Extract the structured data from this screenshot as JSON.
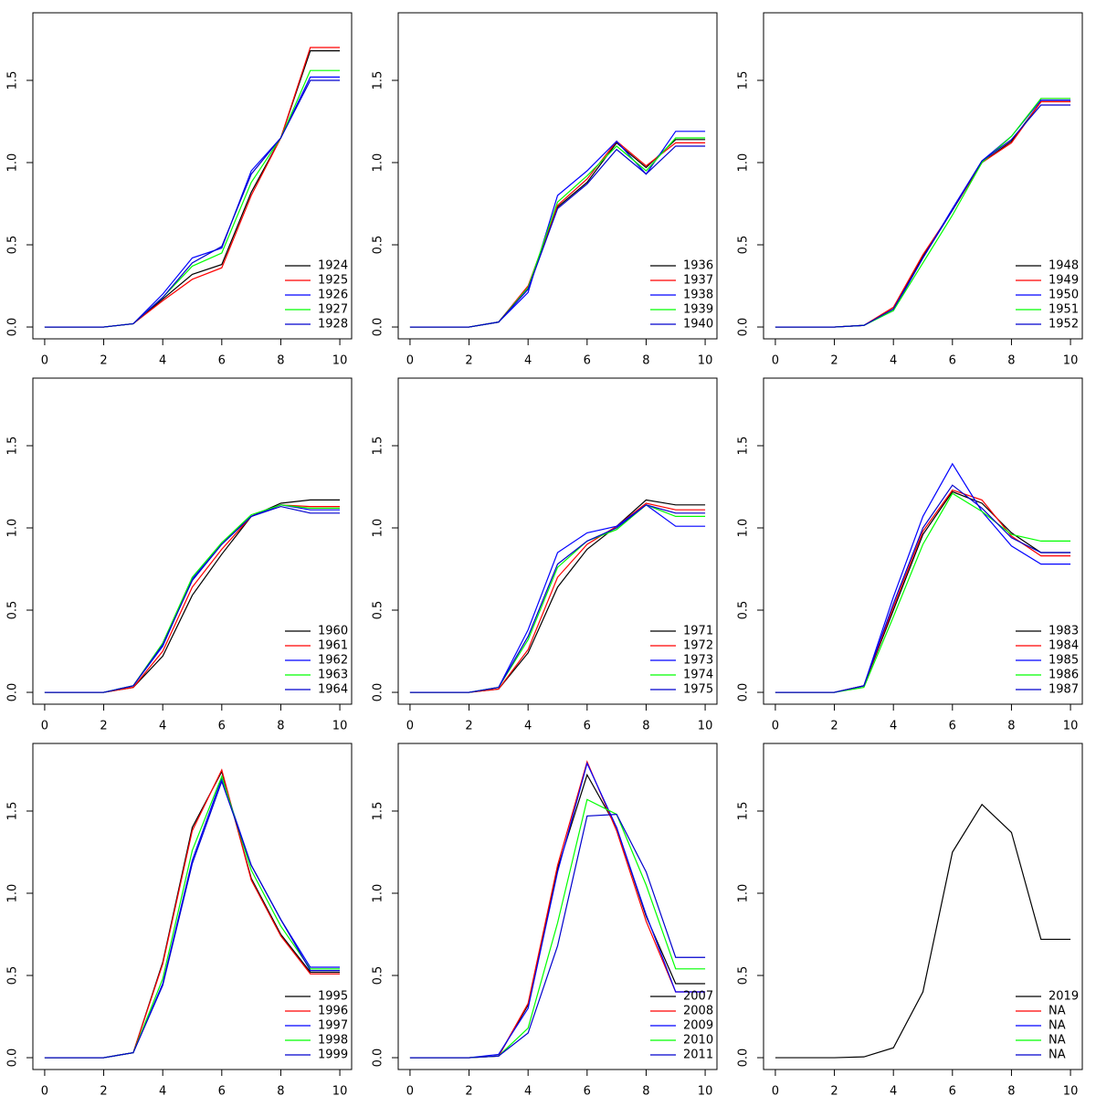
{
  "chart_data": [
    {
      "type": "line",
      "x": [
        0,
        1,
        2,
        3,
        4,
        5,
        6,
        7,
        8,
        9,
        10
      ],
      "xlim": [
        -0.4,
        10.4
      ],
      "ylim": [
        -0.072,
        1.911
      ],
      "xticks": [
        0,
        2,
        4,
        6,
        8,
        10
      ],
      "yticks": [
        {
          "value": 0,
          "label": "0.0"
        },
        0.5,
        {
          "value": 1,
          "label": "1.0"
        },
        1.5
      ],
      "legend": "bottomright",
      "series": [
        {
          "name": "1924",
          "color": "#000000",
          "values": [
            0,
            0,
            0,
            0.02,
            0.17,
            0.32,
            0.38,
            0.82,
            1.15,
            1.68,
            1.68
          ]
        },
        {
          "name": "1925",
          "color": "#ff0000",
          "values": [
            0,
            0,
            0,
            0.02,
            0.16,
            0.29,
            0.36,
            0.8,
            1.15,
            1.7,
            1.7
          ]
        },
        {
          "name": "1926",
          "color": "#0000ff",
          "values": [
            0,
            0,
            0,
            0.02,
            0.2,
            0.42,
            0.48,
            0.95,
            1.15,
            1.52,
            1.52
          ]
        },
        {
          "name": "1927",
          "color": "#00ff00",
          "values": [
            0,
            0,
            0,
            0.02,
            0.18,
            0.37,
            0.45,
            0.88,
            1.15,
            1.56,
            1.56
          ]
        },
        {
          "name": "1928",
          "color": "#0000cd",
          "values": [
            0,
            0,
            0,
            0.02,
            0.18,
            0.39,
            0.49,
            0.93,
            1.15,
            1.5,
            1.5
          ]
        }
      ]
    },
    {
      "type": "line",
      "x": [
        0,
        1,
        2,
        3,
        4,
        5,
        6,
        7,
        8,
        9,
        10
      ],
      "xlim": [
        -0.4,
        10.4
      ],
      "ylim": [
        -0.072,
        1.911
      ],
      "xticks": [
        0,
        2,
        4,
        6,
        8,
        10
      ],
      "yticks": [
        {
          "value": 0,
          "label": "0.0"
        },
        0.5,
        {
          "value": 1,
          "label": "1.0"
        },
        1.5
      ],
      "legend": "bottomright",
      "series": [
        {
          "name": "1936",
          "color": "#000000",
          "values": [
            0,
            0,
            0,
            0.03,
            0.24,
            0.73,
            0.88,
            1.12,
            0.97,
            1.14,
            1.14
          ]
        },
        {
          "name": "1937",
          "color": "#ff0000",
          "values": [
            0,
            0,
            0,
            0.03,
            0.25,
            0.74,
            0.9,
            1.13,
            0.98,
            1.12,
            1.12
          ]
        },
        {
          "name": "1938",
          "color": "#0000ff",
          "values": [
            0,
            0,
            0,
            0.03,
            0.21,
            0.8,
            0.95,
            1.13,
            0.93,
            1.19,
            1.19
          ]
        },
        {
          "name": "1939",
          "color": "#00ff00",
          "values": [
            0,
            0,
            0,
            0.03,
            0.24,
            0.76,
            0.92,
            1.1,
            0.95,
            1.15,
            1.15
          ]
        },
        {
          "name": "1940",
          "color": "#0000cd",
          "values": [
            0,
            0,
            0,
            0.03,
            0.23,
            0.72,
            0.87,
            1.08,
            0.93,
            1.1,
            1.1
          ]
        }
      ]
    },
    {
      "type": "line",
      "x": [
        0,
        1,
        2,
        3,
        4,
        5,
        6,
        7,
        8,
        9,
        10
      ],
      "xlim": [
        -0.4,
        10.4
      ],
      "ylim": [
        -0.072,
        1.911
      ],
      "xticks": [
        0,
        2,
        4,
        6,
        8,
        10
      ],
      "yticks": [
        {
          "value": 0,
          "label": "0.0"
        },
        0.5,
        {
          "value": 1,
          "label": "1.0"
        },
        1.5
      ],
      "legend": "bottomright",
      "series": [
        {
          "name": "1948",
          "color": "#000000",
          "values": [
            0,
            0,
            0,
            0.01,
            0.11,
            0.43,
            0.71,
            1.0,
            1.13,
            1.37,
            1.37
          ]
        },
        {
          "name": "1949",
          "color": "#ff0000",
          "values": [
            0,
            0,
            0,
            0.01,
            0.12,
            0.44,
            0.71,
            1.0,
            1.12,
            1.37,
            1.37
          ]
        },
        {
          "name": "1950",
          "color": "#0000ff",
          "values": [
            0,
            0,
            0,
            0.01,
            0.1,
            0.42,
            0.72,
            1.01,
            1.16,
            1.38,
            1.38
          ]
        },
        {
          "name": "1951",
          "color": "#00ff00",
          "values": [
            0,
            0,
            0,
            0.01,
            0.1,
            0.39,
            0.68,
            1.0,
            1.16,
            1.39,
            1.39
          ]
        },
        {
          "name": "1952",
          "color": "#0000cd",
          "values": [
            0,
            0,
            0,
            0.01,
            0.11,
            0.42,
            0.71,
            1.01,
            1.14,
            1.35,
            1.35
          ]
        }
      ]
    },
    {
      "type": "line",
      "x": [
        0,
        1,
        2,
        3,
        4,
        5,
        6,
        7,
        8,
        9,
        10
      ],
      "xlim": [
        -0.4,
        10.4
      ],
      "ylim": [
        -0.072,
        1.911
      ],
      "xticks": [
        0,
        2,
        4,
        6,
        8,
        10
      ],
      "yticks": [
        {
          "value": 0,
          "label": "0.0"
        },
        0.5,
        {
          "value": 1,
          "label": "1.0"
        },
        1.5
      ],
      "legend": "bottomright",
      "series": [
        {
          "name": "1960",
          "color": "#000000",
          "values": [
            0,
            0,
            0,
            0.03,
            0.22,
            0.59,
            0.84,
            1.07,
            1.15,
            1.17,
            1.17
          ]
        },
        {
          "name": "1961",
          "color": "#ff0000",
          "values": [
            0,
            0,
            0,
            0.03,
            0.25,
            0.64,
            0.87,
            1.07,
            1.14,
            1.13,
            1.13
          ]
        },
        {
          "name": "1962",
          "color": "#0000ff",
          "values": [
            0,
            0,
            0,
            0.04,
            0.28,
            0.69,
            0.91,
            1.07,
            1.14,
            1.11,
            1.11
          ]
        },
        {
          "name": "1963",
          "color": "#00ff00",
          "values": [
            0,
            0,
            0,
            0.04,
            0.3,
            0.7,
            0.91,
            1.08,
            1.14,
            1.12,
            1.12
          ]
        },
        {
          "name": "1964",
          "color": "#0000cd",
          "values": [
            0,
            0,
            0,
            0.04,
            0.29,
            0.68,
            0.9,
            1.07,
            1.13,
            1.09,
            1.09
          ]
        }
      ]
    },
    {
      "type": "line",
      "x": [
        0,
        1,
        2,
        3,
        4,
        5,
        6,
        7,
        8,
        9,
        10
      ],
      "xlim": [
        -0.4,
        10.4
      ],
      "ylim": [
        -0.072,
        1.911
      ],
      "xticks": [
        0,
        2,
        4,
        6,
        8,
        10
      ],
      "yticks": [
        {
          "value": 0,
          "label": "0.0"
        },
        0.5,
        {
          "value": 1,
          "label": "1.0"
        },
        1.5
      ],
      "legend": "bottomright",
      "series": [
        {
          "name": "1971",
          "color": "#000000",
          "values": [
            0,
            0,
            0,
            0.02,
            0.24,
            0.64,
            0.87,
            1.01,
            1.17,
            1.14,
            1.14
          ]
        },
        {
          "name": "1972",
          "color": "#ff0000",
          "values": [
            0,
            0,
            0,
            0.02,
            0.26,
            0.7,
            0.9,
            1.01,
            1.15,
            1.11,
            1.11
          ]
        },
        {
          "name": "1973",
          "color": "#0000ff",
          "values": [
            0,
            0,
            0,
            0.03,
            0.38,
            0.85,
            0.97,
            1.01,
            1.14,
            1.01,
            1.01
          ]
        },
        {
          "name": "1974",
          "color": "#00ff00",
          "values": [
            0,
            0,
            0,
            0.03,
            0.32,
            0.76,
            0.92,
            0.99,
            1.14,
            1.07,
            1.07
          ]
        },
        {
          "name": "1975",
          "color": "#0000cd",
          "values": [
            0,
            0,
            0,
            0.03,
            0.34,
            0.78,
            0.92,
            1.0,
            1.14,
            1.09,
            1.09
          ]
        }
      ]
    },
    {
      "type": "line",
      "x": [
        0,
        1,
        2,
        3,
        4,
        5,
        6,
        7,
        8,
        9,
        10
      ],
      "xlim": [
        -0.4,
        10.4
      ],
      "ylim": [
        -0.072,
        1.911
      ],
      "xticks": [
        0,
        2,
        4,
        6,
        8,
        10
      ],
      "yticks": [
        {
          "value": 0,
          "label": "0.0"
        },
        0.5,
        {
          "value": 1,
          "label": "1.0"
        },
        1.5
      ],
      "legend": "bottomright",
      "series": [
        {
          "name": "1983",
          "color": "#000000",
          "values": [
            0,
            0,
            0,
            0.04,
            0.5,
            0.96,
            1.22,
            1.15,
            0.97,
            0.85,
            0.85
          ]
        },
        {
          "name": "1984",
          "color": "#ff0000",
          "values": [
            0,
            0,
            0,
            0.04,
            0.52,
            0.98,
            1.23,
            1.17,
            0.95,
            0.83,
            0.83
          ]
        },
        {
          "name": "1985",
          "color": "#0000ff",
          "values": [
            0,
            0,
            0,
            0.04,
            0.58,
            1.07,
            1.39,
            1.1,
            0.89,
            0.78,
            0.78
          ]
        },
        {
          "name": "1986",
          "color": "#00ff00",
          "values": [
            0,
            0,
            0,
            0.03,
            0.46,
            0.9,
            1.21,
            1.1,
            0.96,
            0.92,
            0.92
          ]
        },
        {
          "name": "1987",
          "color": "#0000cd",
          "values": [
            0,
            0,
            0,
            0.04,
            0.54,
            1.0,
            1.26,
            1.12,
            0.94,
            0.85,
            0.85
          ]
        }
      ]
    },
    {
      "type": "line",
      "x": [
        0,
        1,
        2,
        3,
        4,
        5,
        6,
        7,
        8,
        9,
        10
      ],
      "xlim": [
        -0.4,
        10.4
      ],
      "ylim": [
        -0.072,
        1.911
      ],
      "xticks": [
        0,
        2,
        4,
        6,
        8,
        10
      ],
      "yticks": [
        {
          "value": 0,
          "label": "0.0"
        },
        0.5,
        {
          "value": 1,
          "label": "1.0"
        },
        1.5
      ],
      "legend": "bottomright",
      "series": [
        {
          "name": "1995",
          "color": "#000000",
          "values": [
            0,
            0,
            0,
            0.03,
            0.58,
            1.4,
            1.74,
            1.09,
            0.75,
            0.52,
            0.52
          ]
        },
        {
          "name": "1996",
          "color": "#ff0000",
          "values": [
            0,
            0,
            0,
            0.03,
            0.57,
            1.38,
            1.75,
            1.08,
            0.74,
            0.51,
            0.51
          ]
        },
        {
          "name": "1997",
          "color": "#0000ff",
          "values": [
            0,
            0,
            0,
            0.03,
            0.45,
            1.2,
            1.7,
            1.17,
            0.84,
            0.55,
            0.55
          ]
        },
        {
          "name": "1998",
          "color": "#00ff00",
          "values": [
            0,
            0,
            0,
            0.03,
            0.48,
            1.26,
            1.71,
            1.14,
            0.8,
            0.54,
            0.54
          ]
        },
        {
          "name": "1999",
          "color": "#0000cd",
          "values": [
            0,
            0,
            0,
            0.03,
            0.44,
            1.18,
            1.68,
            1.17,
            0.84,
            0.53,
            0.53
          ]
        }
      ]
    },
    {
      "type": "line",
      "x": [
        0,
        1,
        2,
        3,
        4,
        5,
        6,
        7,
        8,
        9,
        10
      ],
      "xlim": [
        -0.4,
        10.4
      ],
      "ylim": [
        -0.072,
        1.911
      ],
      "xticks": [
        0,
        2,
        4,
        6,
        8,
        10
      ],
      "yticks": [
        {
          "value": 0,
          "label": "0.0"
        },
        0.5,
        {
          "value": 1,
          "label": "1.0"
        },
        1.5
      ],
      "legend": "bottomright",
      "series": [
        {
          "name": "2007",
          "color": "#000000",
          "values": [
            0,
            0,
            0,
            0.01,
            0.32,
            1.15,
            1.72,
            1.4,
            0.86,
            0.45,
            0.45
          ]
        },
        {
          "name": "2008",
          "color": "#ff0000",
          "values": [
            0,
            0,
            0,
            0.01,
            0.33,
            1.17,
            1.8,
            1.38,
            0.83,
            0.4,
            0.4
          ]
        },
        {
          "name": "2009",
          "color": "#0000ff",
          "values": [
            0,
            0,
            0,
            0.02,
            0.3,
            1.13,
            1.79,
            1.4,
            0.87,
            0.4,
            0.4
          ]
        },
        {
          "name": "2010",
          "color": "#00ff00",
          "values": [
            0,
            0,
            0,
            0.01,
            0.18,
            0.82,
            1.57,
            1.48,
            1.05,
            0.54,
            0.54
          ]
        },
        {
          "name": "2011",
          "color": "#0000cd",
          "values": [
            0,
            0,
            0,
            0.01,
            0.15,
            0.68,
            1.47,
            1.48,
            1.13,
            0.61,
            0.61
          ]
        }
      ]
    },
    {
      "type": "line",
      "x": [
        0,
        1,
        2,
        3,
        4,
        5,
        6,
        7,
        8,
        9,
        10
      ],
      "xlim": [
        -0.4,
        10.4
      ],
      "ylim": [
        -0.072,
        1.911
      ],
      "xticks": [
        0,
        2,
        4,
        6,
        8,
        10
      ],
      "yticks": [
        {
          "value": 0,
          "label": "0.0"
        },
        0.5,
        {
          "value": 1,
          "label": "1.0"
        },
        1.5
      ],
      "legend": "bottomright",
      "series": [
        {
          "name": "2019",
          "color": "#000000",
          "values": [
            0,
            0,
            0,
            0.005,
            0.06,
            0.4,
            1.25,
            1.54,
            1.37,
            0.72,
            0.72
          ]
        },
        {
          "name": "NA",
          "color": "#ff0000",
          "values": [
            null,
            null,
            null,
            null,
            null,
            null,
            null,
            null,
            null,
            null,
            null
          ]
        },
        {
          "name": "NA",
          "color": "#0000ff",
          "values": [
            null,
            null,
            null,
            null,
            null,
            null,
            null,
            null,
            null,
            null,
            null
          ]
        },
        {
          "name": "NA",
          "color": "#00ff00",
          "values": [
            null,
            null,
            null,
            null,
            null,
            null,
            null,
            null,
            null,
            null,
            null
          ]
        },
        {
          "name": "NA",
          "color": "#0000cd",
          "values": [
            null,
            null,
            null,
            null,
            null,
            null,
            null,
            null,
            null,
            null,
            null
          ]
        }
      ]
    }
  ]
}
